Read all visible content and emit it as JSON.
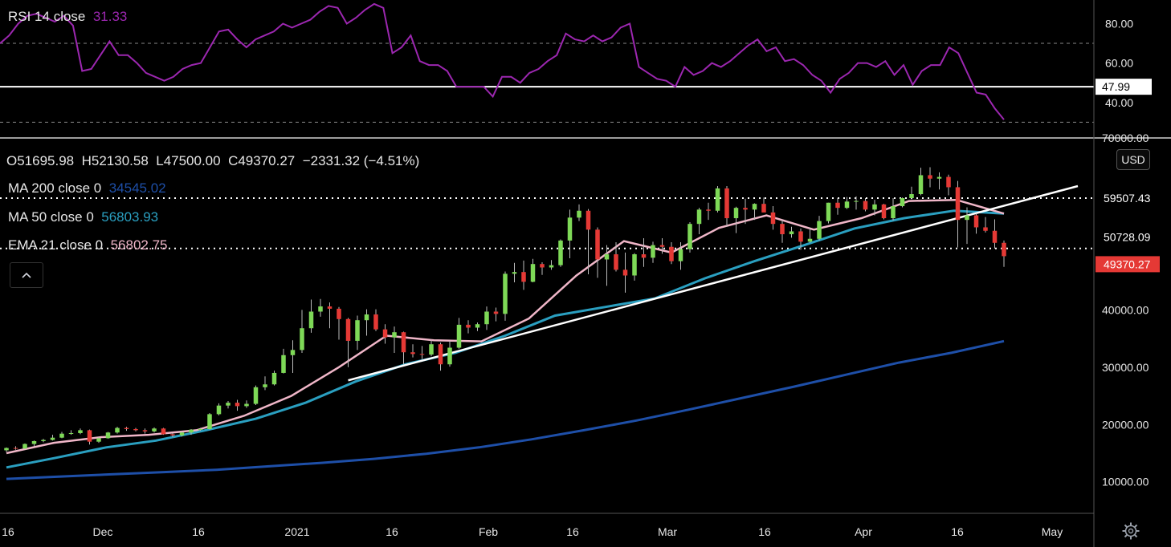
{
  "colors": {
    "background": "#000000",
    "rsi": "#9c27b0",
    "ma200": "#1e4fa8",
    "ma50": "#2a9fc0",
    "ema21": "#f0b6c8",
    "up": "#7ed957",
    "down": "#e53935",
    "trendline": "#ffffff",
    "price_tag": "#e53935"
  },
  "rsi_legend": {
    "label": "RSI 14 close",
    "value": "31.33"
  },
  "ohlc": {
    "o": "O51695.98",
    "h": "H52130.58",
    "l": "L47500.00",
    "c": "C49370.27",
    "chg": "−2331.32 (−4.51%)"
  },
  "indicators": [
    {
      "label": "MA 200 close 0",
      "value": "34545.02"
    },
    {
      "label": "MA 50 close 0",
      "value": "56803.93"
    },
    {
      "label": "EMA 21 close 0",
      "value": "56802.75"
    }
  ],
  "currency": "USD",
  "collapse_icon": "chevron-up-icon",
  "settings_icon": "gear-icon",
  "rsi_axis": {
    "ticks": [
      "80.00",
      "60.00",
      "40.00"
    ],
    "level_label": "47.99"
  },
  "price_axis": {
    "ticks": [
      "70000.00",
      "40000.00",
      "30000.00",
      "20000.00",
      "10000.00"
    ],
    "tags": [
      {
        "text": "59507.43",
        "style": "plain"
      },
      {
        "text": "50728.09",
        "style": "plain"
      },
      {
        "text": "49370.27",
        "style": "current"
      }
    ]
  },
  "time_axis": [
    "16",
    "Dec",
    "16",
    "2021",
    "16",
    "Feb",
    "16",
    "Mar",
    "16",
    "Apr",
    "16",
    "May"
  ],
  "chart_data": [
    {
      "type": "line",
      "name": "RSI 14 close",
      "ylim": [
        22,
        92
      ],
      "levels": [
        70,
        47.99,
        30
      ],
      "values": [
        70,
        74,
        80,
        84,
        85,
        83,
        81,
        84,
        79,
        56,
        57,
        64,
        71,
        64,
        64,
        60,
        55,
        53,
        51,
        53,
        57,
        59,
        60,
        68,
        76,
        77,
        72,
        68,
        72,
        74,
        76,
        80,
        78,
        80,
        82,
        86,
        89,
        88,
        80,
        83,
        87,
        90,
        88,
        65,
        68,
        74,
        61,
        59,
        59,
        56,
        48,
        48,
        48,
        48,
        43,
        53,
        53,
        50,
        55,
        57,
        61,
        64,
        75,
        72,
        71,
        74,
        71,
        73,
        78,
        80,
        58,
        55,
        52,
        51,
        48,
        58,
        54,
        56,
        60,
        58,
        61,
        65,
        69,
        72,
        66,
        68,
        61,
        62,
        59,
        54,
        51,
        45,
        52,
        55,
        60,
        60,
        58,
        61,
        54,
        59,
        49,
        56,
        59,
        59,
        68,
        65,
        55,
        45,
        44,
        37,
        31.33
      ]
    },
    {
      "type": "candlestick",
      "name": "BTCUSD",
      "ylim": [
        4500,
        70000
      ],
      "candles": [
        [
          15500,
          16000,
          15200,
          15900
        ],
        [
          15900,
          16200,
          15600,
          15800
        ],
        [
          15800,
          16700,
          15700,
          16600
        ],
        [
          16600,
          17200,
          16200,
          17100
        ],
        [
          17100,
          17500,
          16900,
          17300
        ],
        [
          17300,
          18200,
          17200,
          17700
        ],
        [
          17700,
          18700,
          17600,
          18400
        ],
        [
          18400,
          19000,
          18200,
          18500
        ],
        [
          18500,
          19300,
          18300,
          19000
        ],
        [
          19000,
          19100,
          16500,
          17000
        ],
        [
          17000,
          17800,
          16800,
          17600
        ],
        [
          17600,
          18700,
          17500,
          18600
        ],
        [
          18600,
          19600,
          18400,
          19400
        ],
        [
          19400,
          19600,
          18900,
          19200
        ],
        [
          19200,
          19400,
          18800,
          19000
        ],
        [
          19000,
          19300,
          18400,
          18800
        ],
        [
          18800,
          19500,
          18600,
          19300
        ],
        [
          19300,
          19400,
          18200,
          18300
        ],
        [
          18300,
          18500,
          17800,
          18100
        ],
        [
          18100,
          18800,
          17900,
          18600
        ],
        [
          18600,
          19200,
          18200,
          19100
        ],
        [
          19100,
          19400,
          18900,
          19200
        ],
        [
          19200,
          22000,
          19100,
          21800
        ],
        [
          21800,
          23700,
          21600,
          23300
        ],
        [
          23300,
          24100,
          22800,
          23800
        ],
        [
          23800,
          24300,
          22400,
          23200
        ],
        [
          23200,
          24200,
          22900,
          23600
        ],
        [
          23600,
          26800,
          23400,
          26500
        ],
        [
          26500,
          28400,
          26000,
          27000
        ],
        [
          27000,
          29400,
          26800,
          29000
        ],
        [
          29000,
          33200,
          28900,
          32100
        ],
        [
          32100,
          34700,
          29000,
          33000
        ],
        [
          33000,
          40000,
          32500,
          36800
        ],
        [
          36800,
          41800,
          36000,
          39700
        ],
        [
          39700,
          41900,
          38800,
          40600
        ],
        [
          40600,
          41300,
          36800,
          40200
        ],
        [
          40200,
          40500,
          34800,
          38400
        ],
        [
          38400,
          38600,
          30000,
          34600
        ],
        [
          34600,
          39000,
          33000,
          38200
        ],
        [
          38200,
          40100,
          35500,
          39200
        ],
        [
          39200,
          40100,
          36300,
          36600
        ],
        [
          36600,
          37500,
          34100,
          35200
        ],
        [
          35200,
          37100,
          32500,
          36100
        ],
        [
          36100,
          36200,
          30500,
          32600
        ],
        [
          32600,
          34000,
          31700,
          32300
        ],
        [
          32300,
          33700,
          31400,
          32200
        ],
        [
          32200,
          34800,
          31900,
          34000
        ],
        [
          34000,
          34300,
          29400,
          30500
        ],
        [
          30500,
          34600,
          30100,
          33400
        ],
        [
          33400,
          38600,
          33200,
          37400
        ],
        [
          37400,
          38200,
          35900,
          36900
        ],
        [
          36900,
          37800,
          36300,
          37500
        ],
        [
          37500,
          40600,
          36500,
          39700
        ],
        [
          39700,
          40400,
          38000,
          39300
        ],
        [
          39300,
          46700,
          38100,
          46300
        ],
        [
          46300,
          48200,
          44800,
          46600
        ],
        [
          46600,
          48600,
          43500,
          44900
        ],
        [
          44900,
          48900,
          44800,
          48000
        ],
        [
          48000,
          48300,
          46100,
          47400
        ],
        [
          47400,
          48700,
          47000,
          47800
        ],
        [
          47800,
          52300,
          47500,
          52100
        ],
        [
          52100,
          57500,
          49000,
          56100
        ],
        [
          56100,
          58400,
          55500,
          57300
        ],
        [
          57300,
          57600,
          46200,
          54000
        ],
        [
          54000,
          54400,
          45600,
          48800
        ],
        [
          48800,
          51300,
          44200,
          49700
        ],
        [
          49700,
          51800,
          46700,
          47000
        ],
        [
          47000,
          50000,
          43000,
          46000
        ],
        [
          46000,
          49900,
          45100,
          49700
        ],
        [
          49700,
          52500,
          47500,
          49100
        ],
        [
          49100,
          51900,
          48200,
          51300
        ],
        [
          51300,
          52500,
          49800,
          51000
        ],
        [
          51000,
          51800,
          48000,
          48500
        ],
        [
          48500,
          51800,
          47000,
          50600
        ],
        [
          50600,
          55300,
          50000,
          55000
        ],
        [
          55000,
          57800,
          53200,
          57500
        ],
        [
          57500,
          58700,
          55700,
          57300
        ],
        [
          57300,
          61600,
          57000,
          61200
        ],
        [
          61200,
          61600,
          54500,
          56000
        ],
        [
          56000,
          58000,
          53400,
          57800
        ],
        [
          57800,
          59400,
          55000,
          57500
        ],
        [
          57500,
          58600,
          55700,
          58500
        ],
        [
          58500,
          59600,
          57100,
          57000
        ],
        [
          57000,
          58100,
          54000,
          55000
        ],
        [
          55000,
          55700,
          51700,
          53200
        ],
        [
          53200,
          54500,
          52600,
          53700
        ],
        [
          53700,
          54200,
          50500,
          51900
        ],
        [
          51900,
          54400,
          51700,
          52400
        ],
        [
          52400,
          56400,
          52100,
          55500
        ],
        [
          55500,
          58700,
          55100,
          58700
        ],
        [
          58700,
          59500,
          56600,
          57800
        ],
        [
          57800,
          59700,
          57600,
          58900
        ],
        [
          58900,
          59800,
          57500,
          59000
        ],
        [
          59000,
          59500,
          57200,
          57500
        ],
        [
          57500,
          59200,
          56500,
          58400
        ],
        [
          58400,
          58500,
          55800,
          56000
        ],
        [
          56000,
          59500,
          55600,
          58100
        ],
        [
          58100,
          59600,
          57900,
          59500
        ],
        [
          59500,
          61500,
          59300,
          60200
        ],
        [
          60200,
          64800,
          60000,
          63500
        ],
        [
          63500,
          64900,
          61400,
          62900
        ],
        [
          62900,
          64000,
          61000,
          63200
        ],
        [
          63200,
          63600,
          60000,
          61400
        ],
        [
          61400,
          62500,
          50900,
          55700
        ],
        [
          55700,
          57900,
          51500,
          56500
        ],
        [
          56500,
          56800,
          53300,
          54400
        ],
        [
          54400,
          56200,
          53500,
          53800
        ],
        [
          53800,
          55800,
          50700,
          51700
        ],
        [
          51700,
          52100,
          47500,
          49370.27
        ]
      ],
      "ma200": [
        10500,
        10900,
        11300,
        11700,
        12100,
        12700,
        13300,
        14000,
        14900,
        16000,
        17400,
        19000,
        20700,
        22600,
        24600,
        26600,
        28700,
        30800,
        32500,
        34545.02
      ],
      "ma50": [
        12500,
        14200,
        16000,
        17200,
        19000,
        21000,
        23800,
        27500,
        30500,
        32500,
        35500,
        39000,
        40500,
        42000,
        45500,
        48500,
        51300,
        54200,
        56000,
        57300,
        56803.93
      ],
      "ema21": [
        15000,
        16800,
        17800,
        18200,
        19000,
        21500,
        25000,
        30000,
        35500,
        34700,
        34500,
        38500,
        46000,
        52000,
        50000,
        54300,
        56500,
        54000,
        56000,
        59000,
        59200,
        56802.75
      ],
      "trendline": [
        {
          "x_index": 37,
          "y": 27700
        },
        {
          "x_index": 116,
          "y": 61600
        }
      ],
      "levels": [
        59507.43,
        50728.09
      ]
    }
  ]
}
